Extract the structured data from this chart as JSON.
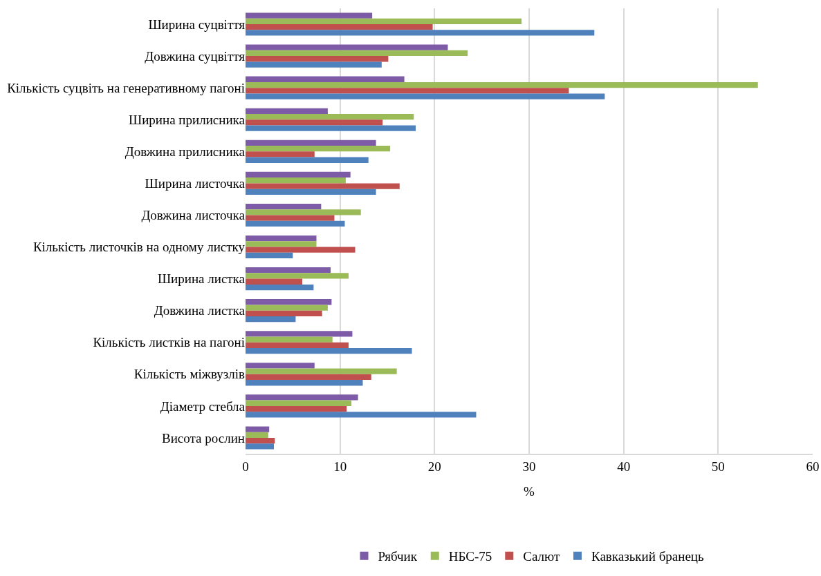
{
  "chart_data": {
    "type": "bar",
    "orientation": "horizontal",
    "xlabel": "%",
    "categories": [
      "Ширина суцвіття",
      "Довжина суцвіття",
      "Кількість суцвіть на генеративному пагоні",
      "Ширина прилисника",
      "Довжина прилисника",
      "Ширина листочка",
      "Довжина листочка",
      "Кількість листочків на одному листку",
      "Ширина листка",
      "Довжина листка",
      "Кількість листків на пагоні",
      "Кількість міжвузлів",
      "Діаметр стебла",
      "Висота рослин"
    ],
    "series": [
      {
        "name": "Рябчик",
        "color": "#7d5ba6",
        "values": [
          13.4,
          21.4,
          16.8,
          8.7,
          13.8,
          11.1,
          8.0,
          7.5,
          9.0,
          9.1,
          11.3,
          7.3,
          11.9,
          2.5
        ]
      },
      {
        "name": "НБС-75",
        "color": "#9bbb59",
        "values": [
          29.2,
          23.5,
          54.2,
          17.8,
          15.3,
          10.6,
          12.2,
          7.5,
          10.9,
          8.7,
          9.2,
          16.0,
          11.2,
          2.4
        ]
      },
      {
        "name": "Салют",
        "color": "#c0504d",
        "values": [
          19.8,
          15.1,
          34.2,
          14.5,
          7.3,
          16.3,
          9.4,
          11.6,
          6.0,
          8.1,
          10.9,
          13.3,
          10.7,
          3.1
        ]
      },
      {
        "name": "Кавказький бранець",
        "color": "#4f81bd",
        "values": [
          36.9,
          14.4,
          38.0,
          18.0,
          13.0,
          13.8,
          10.5,
          5.0,
          7.2,
          5.3,
          17.6,
          12.4,
          24.4,
          3.0
        ]
      }
    ],
    "xlim": [
      0,
      60
    ],
    "xticks": [
      0,
      10,
      20,
      30,
      40,
      50,
      60
    ],
    "grid": "x",
    "legend": "bottom"
  }
}
